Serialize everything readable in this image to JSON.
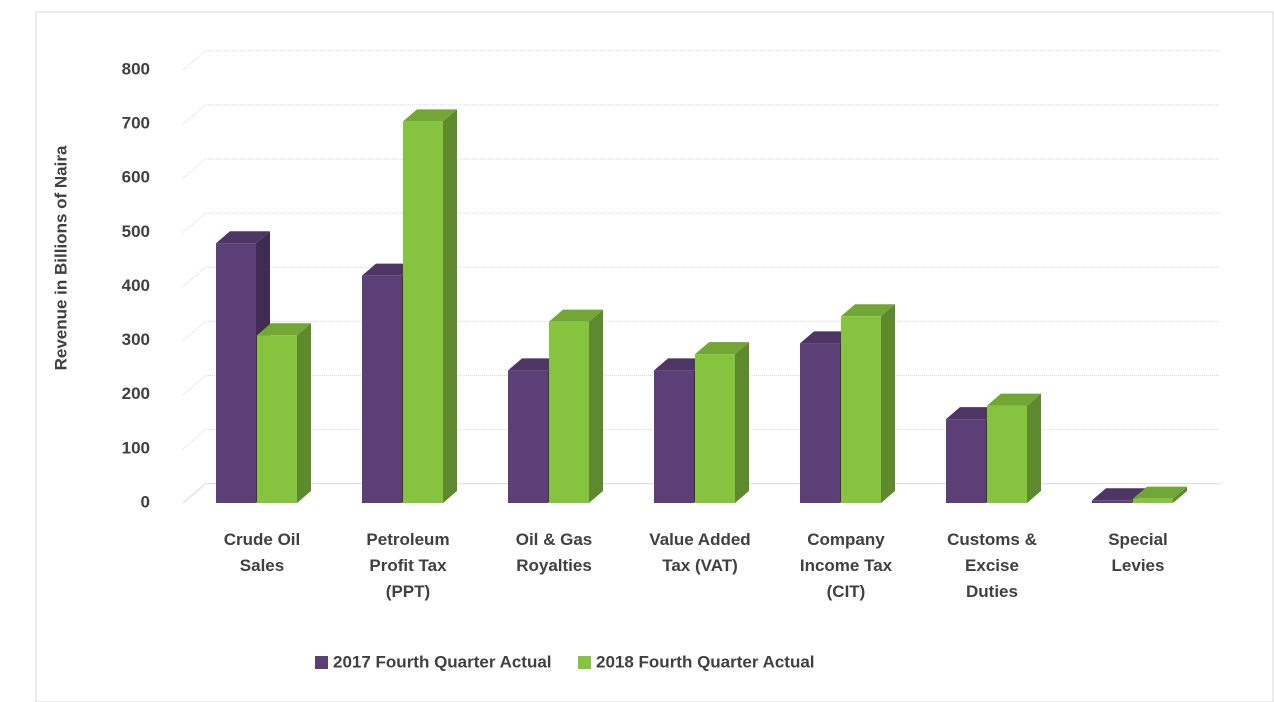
{
  "chart_data": {
    "type": "bar3d",
    "y_label": "Revenue in Billions of Naira",
    "categories": [
      "Crude Oil Sales",
      "Petroleum Profit Tax (PPT)",
      "Oil & Gas Royalties",
      "Value Added Tax (VAT)",
      "Company Income Tax (CIT)",
      "Customs & Excise Duties",
      "Special Levies"
    ],
    "series": [
      {
        "name": "2017 Fourth Quarter Actual",
        "color": "#5b3f76",
        "values": [
          480,
          420,
          245,
          245,
          295,
          155,
          5
        ]
      },
      {
        "name": "2018 Fourth Quarter Actual",
        "color": "#86c440",
        "values": [
          310,
          705,
          335,
          275,
          345,
          180,
          8
        ]
      }
    ],
    "ylim": [
      0,
      800
    ],
    "yticks": [
      0,
      100,
      200,
      300,
      400,
      500,
      600,
      700,
      800
    ],
    "grid": true,
    "legend": "bottom"
  }
}
